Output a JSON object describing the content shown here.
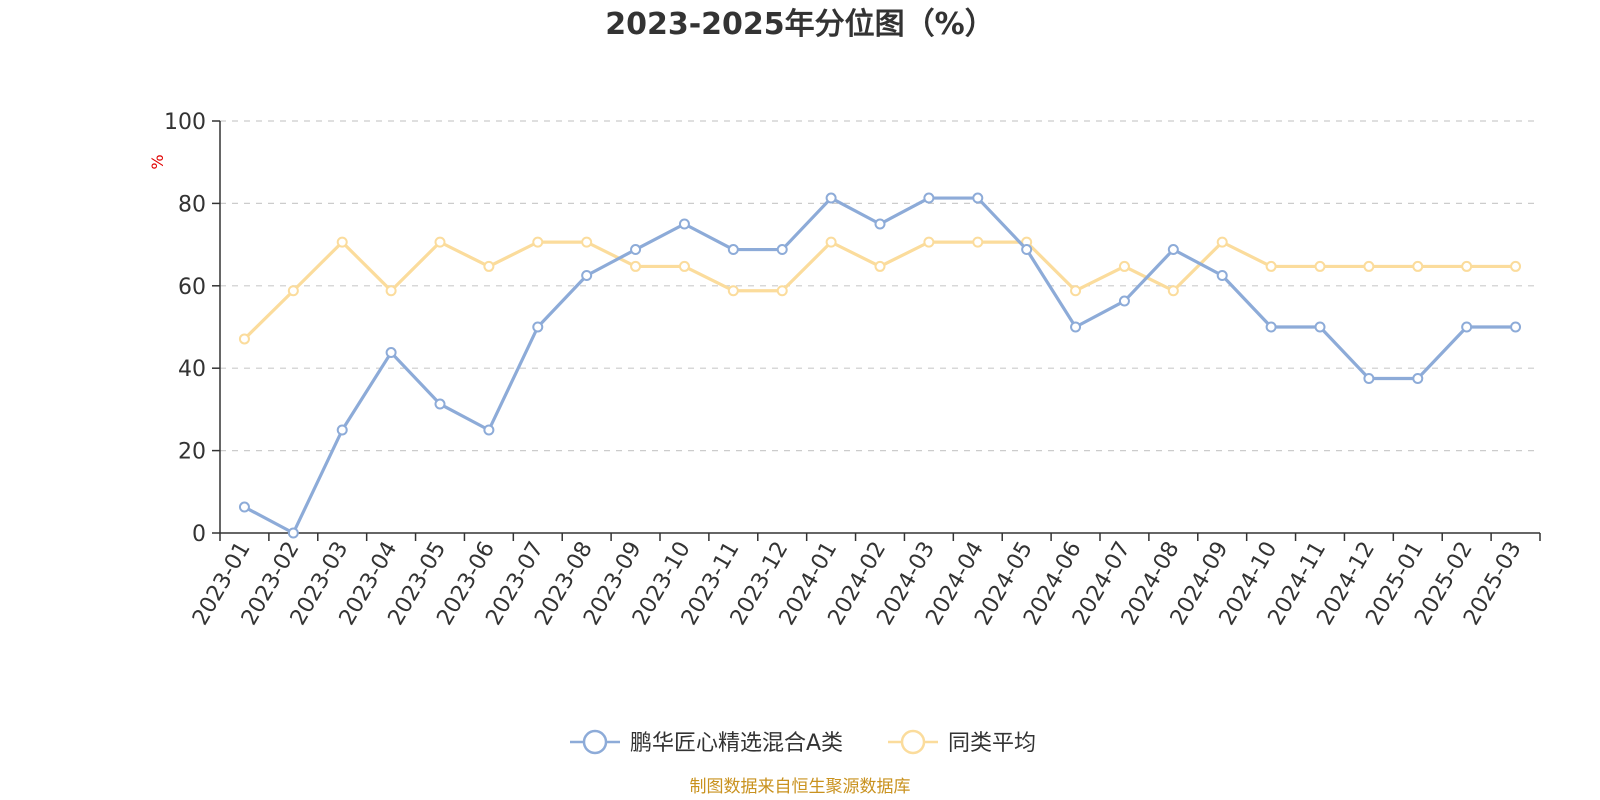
{
  "chart_data": {
    "type": "line",
    "title": "2023-2025年分位图（%）",
    "ylabel": "%",
    "xlabel": "",
    "ylim": [
      0,
      100
    ],
    "yticks": [
      0,
      20,
      40,
      60,
      80,
      100
    ],
    "grid": true,
    "legend_position": "bottom-center",
    "categories": [
      "2023-01",
      "2023-02",
      "2023-03",
      "2023-04",
      "2023-05",
      "2023-06",
      "2023-07",
      "2023-08",
      "2023-09",
      "2023-10",
      "2023-11",
      "2023-12",
      "2024-01",
      "2024-02",
      "2024-03",
      "2024-04",
      "2024-05",
      "2024-06",
      "2024-07",
      "2024-08",
      "2024-09",
      "2024-10",
      "2024-11",
      "2024-12",
      "2025-01",
      "2025-02",
      "2025-03"
    ],
    "series": [
      {
        "name": "鹏华匠心精选混合A类",
        "color": "#8dabd8",
        "values": [
          6.3,
          0,
          25,
          43.8,
          31.3,
          25,
          50,
          62.5,
          68.8,
          75,
          68.8,
          68.8,
          81.3,
          75,
          81.3,
          81.3,
          68.8,
          50,
          56.3,
          68.8,
          62.5,
          50,
          50,
          37.5,
          37.5,
          50,
          50
        ]
      },
      {
        "name": "同类平均",
        "color": "#fbdc9c",
        "values": [
          47.1,
          58.8,
          70.6,
          58.8,
          70.6,
          64.7,
          70.6,
          70.6,
          64.7,
          64.7,
          58.8,
          58.8,
          70.6,
          64.7,
          70.6,
          70.6,
          70.6,
          58.8,
          64.7,
          58.8,
          70.6,
          64.7,
          64.7,
          64.7,
          64.7,
          64.7,
          64.7
        ]
      }
    ],
    "source": "制图数据来自恒生聚源数据库"
  }
}
